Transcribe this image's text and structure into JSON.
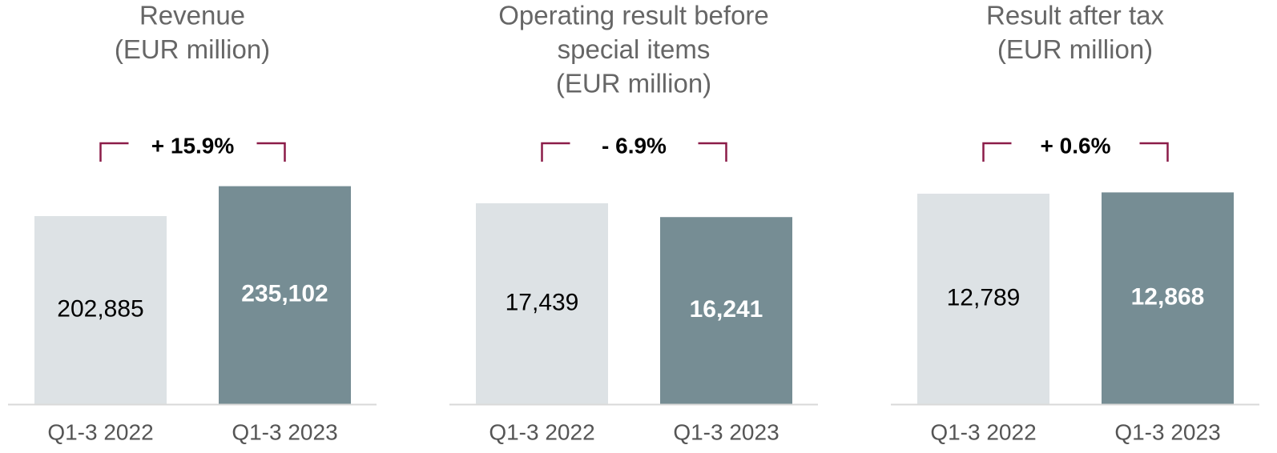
{
  "chart_data": [
    {
      "type": "bar",
      "title": [
        "Revenue",
        "(EUR million)"
      ],
      "annotation": "+ 15.9%",
      "categories": [
        "Q1-3 2022",
        "Q1-3 2023"
      ],
      "values": [
        202885,
        235102
      ],
      "value_labels": [
        "202,885",
        "235,102"
      ],
      "colors": [
        "#dde2e5",
        "#768d94"
      ],
      "ylim": [
        0,
        246000
      ]
    },
    {
      "type": "bar",
      "title": [
        "Operating result before",
        "special items",
        "(EUR million)"
      ],
      "annotation": "- 6.9%",
      "categories": [
        "Q1-3 2022",
        "Q1-3 2023"
      ],
      "values": [
        17439,
        16241
      ],
      "value_labels": [
        "17,439",
        "16,241"
      ],
      "colors": [
        "#dde2e5",
        "#768d94"
      ],
      "ylim": [
        0,
        19800
      ]
    },
    {
      "type": "bar",
      "title": [
        "Result after tax",
        "(EUR million)"
      ],
      "annotation": "+ 0.6%",
      "categories": [
        "Q1-3 2022",
        "Q1-3 2023"
      ],
      "values": [
        12789,
        12868
      ],
      "value_labels": [
        "12,789",
        "12,868"
      ],
      "colors": [
        "#dde2e5",
        "#768d94"
      ],
      "ylim": [
        0,
        13860
      ]
    }
  ]
}
